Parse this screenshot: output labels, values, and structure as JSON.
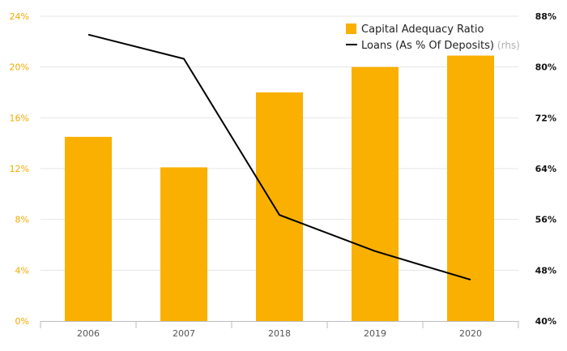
{
  "chart_data": {
    "type": "bar",
    "categories": [
      "2006",
      "2007",
      "2018",
      "2019",
      "2020"
    ],
    "series": [
      {
        "name": "Capital Adequacy Ratio",
        "type": "bar",
        "axis": "left",
        "color": "#f9b000",
        "values": [
          14.5,
          12.1,
          18.0,
          20.0,
          20.9
        ]
      },
      {
        "name": "Loans (As % Of Deposits)",
        "name_note": "(rhs)",
        "type": "line",
        "axis": "right",
        "color": "#000000",
        "values": [
          85.1,
          81.3,
          56.7,
          51.0,
          46.5
        ]
      }
    ],
    "y_left": {
      "lim": [
        0,
        24
      ],
      "ticks": [
        0,
        4,
        8,
        12,
        16,
        20,
        24
      ],
      "tick_labels": [
        "0%",
        "4%",
        "8%",
        "12%",
        "16%",
        "20%",
        "24%"
      ],
      "color": "#f5a800"
    },
    "y_right": {
      "lim": [
        40,
        88
      ],
      "ticks": [
        40,
        48,
        56,
        64,
        72,
        80,
        88
      ],
      "tick_labels": [
        "40%",
        "48%",
        "56%",
        "64%",
        "72%",
        "80%",
        "88%"
      ],
      "color": "#111111"
    },
    "grid": true,
    "legend": "top-right"
  }
}
